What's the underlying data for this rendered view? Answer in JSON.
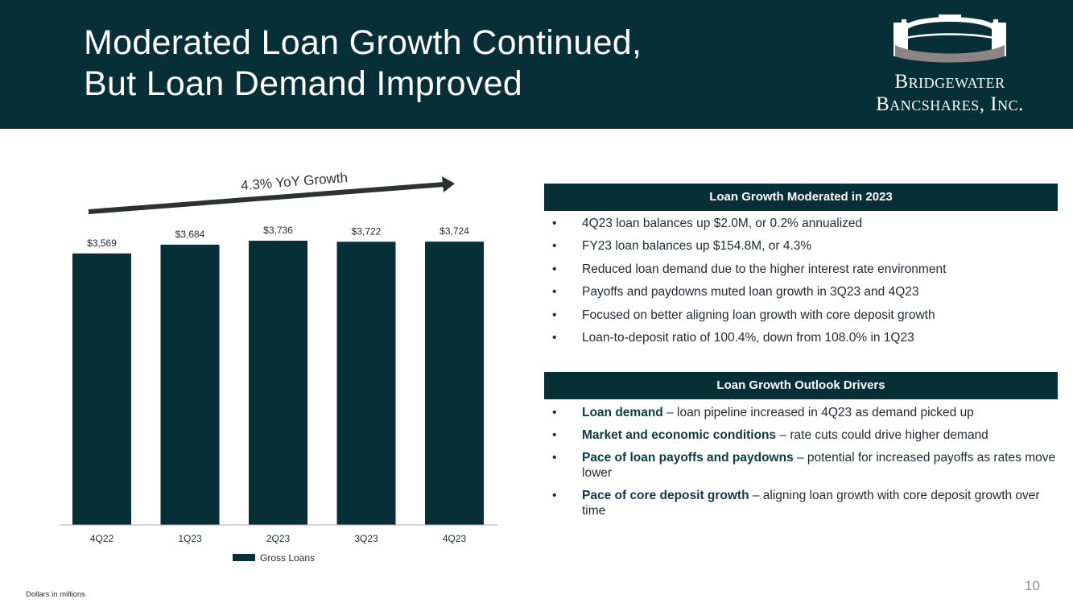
{
  "slide": {
    "title_line1": "Moderated Loan Growth Continued,",
    "title_line2": "But Loan Demand Improved",
    "logo_line1": "Bridgewater",
    "logo_line2": "Bancshares, Inc.",
    "footnote": "Dollars in millions",
    "page_number": "10"
  },
  "chart_data": {
    "type": "bar",
    "categories": [
      "4Q22",
      "1Q23",
      "2Q23",
      "3Q23",
      "4Q23"
    ],
    "series": [
      {
        "name": "Gross Loans",
        "values": [
          3569,
          3684,
          3736,
          3722,
          3724
        ]
      }
    ],
    "data_labels": [
      "$3,569",
      "$3,684",
      "$3,736",
      "$3,722",
      "$3,724"
    ],
    "annotation": "4.3% YoY Growth",
    "legend": "bottom",
    "grid": false,
    "ylim": [
      0,
      3736
    ],
    "bar_color": "#072f37",
    "arrow_color": "#2e3033"
  },
  "panels": [
    {
      "heading": "Loan Growth Moderated in 2023",
      "bullets": [
        {
          "text": "4Q23 loan balances up $2.0M, or 0.2% annualized"
        },
        {
          "text": "FY23 loan balances up $154.8M, or 4.3%"
        },
        {
          "text": "Reduced loan demand due to the higher interest rate environment"
        },
        {
          "text": "Payoffs and paydowns muted loan growth in 3Q23 and 4Q23"
        },
        {
          "text": "Focused on better aligning loan growth with core deposit growth"
        },
        {
          "text": "Loan-to-deposit ratio of 100.4%, down from 108.0% in 1Q23"
        }
      ]
    },
    {
      "heading": "Loan Growth Outlook Drivers",
      "bullets": [
        {
          "strong": "Loan demand",
          "text": " – loan pipeline increased in 4Q23 as demand picked up"
        },
        {
          "strong": "Market and economic conditions",
          "text": " – rate cuts could drive higher demand"
        },
        {
          "strong": "Pace of loan payoffs and paydowns",
          "text": " – potential for increased payoffs as rates move lower"
        },
        {
          "strong": "Pace of core deposit growth",
          "text": " – aligning loan growth with core deposit growth over time"
        }
      ]
    }
  ],
  "colors": {
    "header_bg": "#072f37",
    "logo_gray": "#8c8486"
  }
}
